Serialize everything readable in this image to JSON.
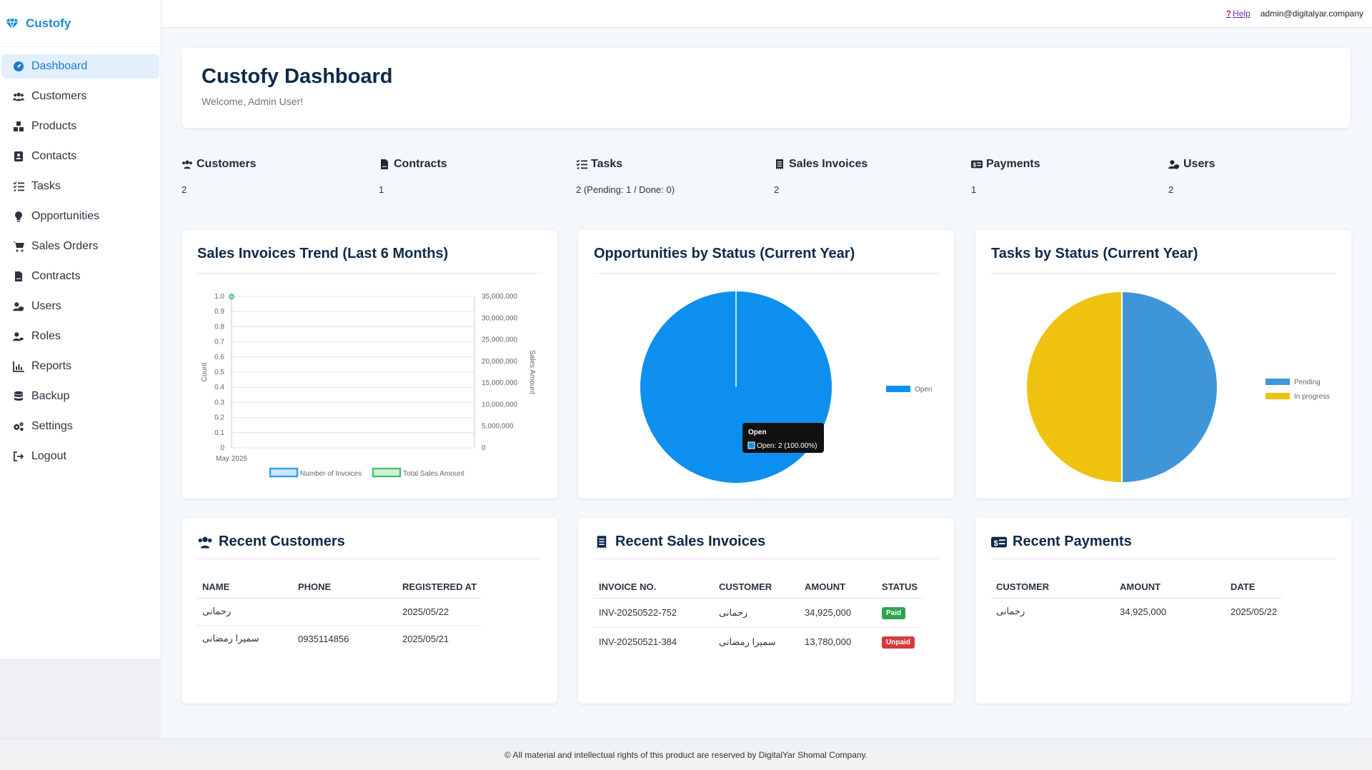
{
  "app": {
    "brand": "Custofy",
    "accent": "#1c8ad6"
  },
  "sidebar": {
    "items": [
      {
        "label": "Dashboard",
        "icon": "dashboard-icon",
        "active": true
      },
      {
        "label": "Customers",
        "icon": "users-icon"
      },
      {
        "label": "Products",
        "icon": "boxes-icon"
      },
      {
        "label": "Contacts",
        "icon": "address-book-icon"
      },
      {
        "label": "Tasks",
        "icon": "list-check-icon"
      },
      {
        "label": "Opportunities",
        "icon": "lightbulb-icon"
      },
      {
        "label": "Sales Orders",
        "icon": "cart-icon"
      },
      {
        "label": "Contracts",
        "icon": "file-contract-icon"
      },
      {
        "label": "Users",
        "icon": "user-shield-icon"
      },
      {
        "label": "Roles",
        "icon": "user-tag-icon"
      },
      {
        "label": "Reports",
        "icon": "chart-line-icon"
      },
      {
        "label": "Backup",
        "icon": "database-icon"
      },
      {
        "label": "Settings",
        "icon": "cogs-icon"
      },
      {
        "label": "Logout",
        "icon": "sign-out-icon"
      }
    ]
  },
  "topbar": {
    "help": "Help",
    "user_email": "admin@digitalyar.company"
  },
  "header": {
    "title": "Custofy Dashboard",
    "welcome": "Welcome, Admin User!"
  },
  "stats": [
    {
      "label": "Customers",
      "value": "2",
      "icon": "users-icon"
    },
    {
      "label": "Contracts",
      "value": "1",
      "icon": "file-contract-icon"
    },
    {
      "label": "Tasks",
      "value": "2 (Pending: 1 / Done: 0)",
      "icon": "list-check-icon"
    },
    {
      "label": "Sales Invoices",
      "value": "2",
      "icon": "receipt-icon"
    },
    {
      "label": "Payments",
      "value": "1",
      "icon": "money-check-icon"
    },
    {
      "label": "Users",
      "value": "2",
      "icon": "user-shield-icon"
    }
  ],
  "charts": {
    "sales_trend_title": "Sales Invoices Trend (Last 6 Months)",
    "opportunities_title": "Opportunities by Status (Current Year)",
    "tasks_title": "Tasks by Status (Current Year)"
  },
  "chart_data": [
    {
      "type": "line",
      "title": "Sales Invoices Trend (Last 6 Months)",
      "categories": [
        "May 2025"
      ],
      "series": [
        {
          "name": "Number of Invoices",
          "values": [
            1.0
          ],
          "axis": "left",
          "color": "#36a2eb"
        },
        {
          "name": "Total Sales Amount",
          "values": [
            34925000
          ],
          "axis": "right",
          "color": "#4bc06e"
        }
      ],
      "ylabel": "Count",
      "y2label": "Sales Amount",
      "ylim": [
        0,
        1.0
      ],
      "y2lim": [
        0,
        35000000
      ],
      "yticks": [
        "1.0",
        "0.9",
        "0.8",
        "0.7",
        "0.6",
        "0.5",
        "0.4",
        "0.3",
        "0.2",
        "0.1",
        "0"
      ],
      "y2ticks": [
        "35,000,000",
        "30,000,000",
        "25,000,000",
        "20,000,000",
        "15,000,000",
        "10,000,000",
        "5,000,000",
        "0"
      ],
      "grid": true,
      "legend": "bottom"
    },
    {
      "type": "pie",
      "title": "Opportunities by Status (Current Year)",
      "labels": [
        "Open"
      ],
      "values": [
        2
      ],
      "colors": [
        "#0d8ff0"
      ],
      "legend": "right",
      "tooltip": {
        "title": "Open",
        "body": "Open: 2 (100.00%)"
      }
    },
    {
      "type": "pie",
      "title": "Tasks by Status (Current Year)",
      "labels": [
        "Pending",
        "In progress"
      ],
      "values": [
        1,
        1
      ],
      "colors": [
        "#3e95d8",
        "#efc20f"
      ],
      "legend": "right"
    }
  ],
  "recent_customers": {
    "title": "Recent Customers",
    "columns": [
      "NAME",
      "PHONE",
      "REGISTERED AT"
    ],
    "rows": [
      [
        "رحمانی",
        "",
        "2025/05/22"
      ],
      [
        "سمیرا رمضانی",
        "0935114856",
        "2025/05/21"
      ]
    ]
  },
  "recent_invoices": {
    "title": "Recent Sales Invoices",
    "columns": [
      "INVOICE NO.",
      "CUSTOMER",
      "AMOUNT",
      "STATUS"
    ],
    "rows": [
      {
        "no": "INV-20250522-752",
        "customer": "رحمانی",
        "amount": "34,925,000",
        "status": "Paid"
      },
      {
        "no": "INV-20250521-384",
        "customer": "سمیرا رمضانی",
        "amount": "13,780,000",
        "status": "Unpaid"
      }
    ]
  },
  "recent_payments": {
    "title": "Recent Payments",
    "columns": [
      "CUSTOMER",
      "AMOUNT",
      "DATE"
    ],
    "rows": [
      [
        "رحمانی",
        "34,925,000",
        "2025/05/22"
      ]
    ]
  },
  "footer": {
    "text": "© All material and intellectual rights of this product are reserved by DigitalYar Shomal Company."
  }
}
